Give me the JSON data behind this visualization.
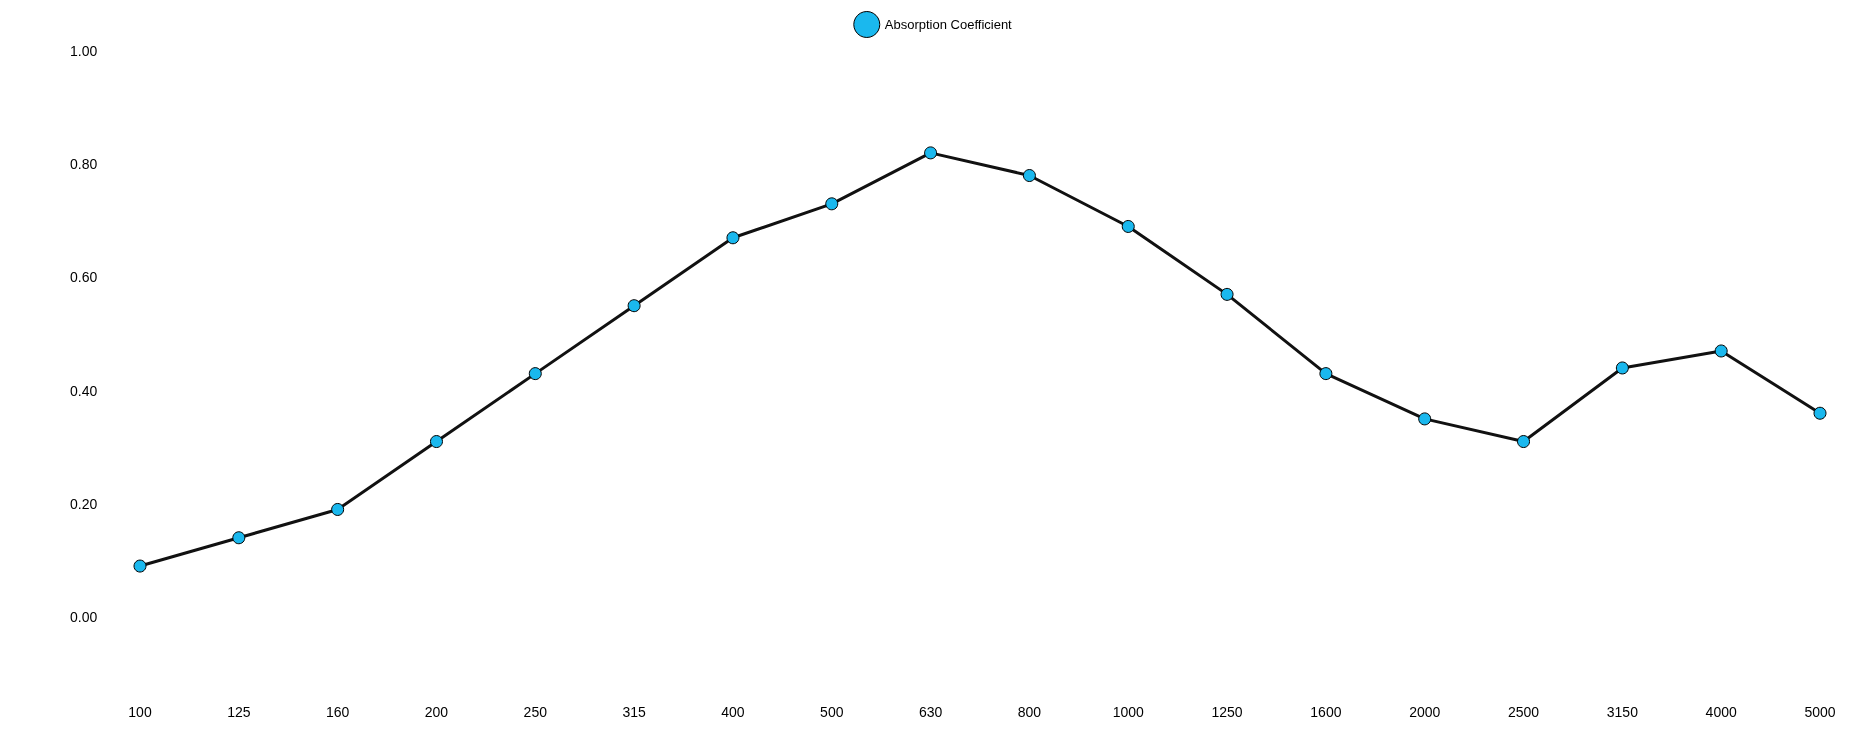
{
  "chart_data": {
    "type": "line",
    "categories": [
      "100",
      "125",
      "160",
      "200",
      "250",
      "315",
      "400",
      "500",
      "630",
      "800",
      "1000",
      "1250",
      "1600",
      "2000",
      "2500",
      "3150",
      "4000",
      "5000"
    ],
    "series": [
      {
        "name": "Absorption Coefficient",
        "color": "#1ab8ee",
        "values": [
          0.09,
          0.14,
          0.19,
          0.31,
          0.43,
          0.55,
          0.67,
          0.73,
          0.82,
          0.78,
          0.69,
          0.57,
          0.43,
          0.35,
          0.31,
          0.44,
          0.47,
          0.36
        ]
      }
    ],
    "ylim": [
      0,
      1.0
    ],
    "yticks": [
      {
        "value": 0,
        "label": "0.00"
      },
      {
        "value": 0.2,
        "label": "0.20"
      },
      {
        "value": 0.4,
        "label": "0.40"
      },
      {
        "value": 0.6,
        "label": "0.60"
      },
      {
        "value": 0.8,
        "label": "0.80"
      },
      {
        "value": 1.0,
        "label": "1.00"
      }
    ],
    "grid": false,
    "legend": "top",
    "marker": "circle",
    "line_style": "solid"
  }
}
